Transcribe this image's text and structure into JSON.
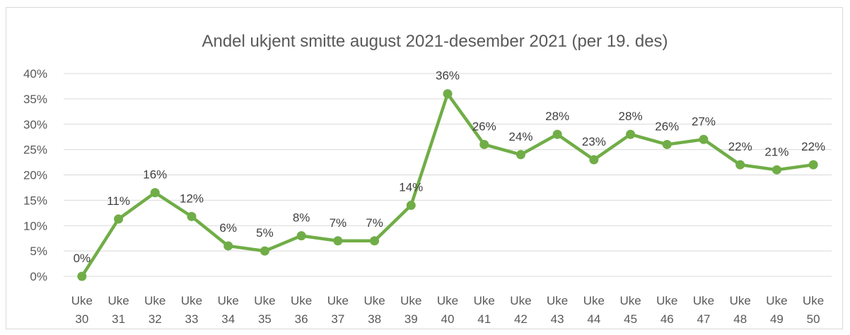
{
  "chart_data": {
    "type": "line",
    "title": "Andel ukjent smitte august 2021-desember 2021 (per 19. des)",
    "xlabel": "",
    "ylabel": "",
    "categories": [
      [
        "Uke",
        "30"
      ],
      [
        "Uke",
        "31"
      ],
      [
        "Uke",
        "32"
      ],
      [
        "Uke",
        "33"
      ],
      [
        "Uke",
        "34"
      ],
      [
        "Uke",
        "35"
      ],
      [
        "Uke",
        "36"
      ],
      [
        "Uke",
        "37"
      ],
      [
        "Uke",
        "38"
      ],
      [
        "Uke",
        "39"
      ],
      [
        "Uke",
        "40"
      ],
      [
        "Uke",
        "41"
      ],
      [
        "Uke",
        "42"
      ],
      [
        "Uke",
        "43"
      ],
      [
        "Uke",
        "44"
      ],
      [
        "Uke",
        "45"
      ],
      [
        "Uke",
        "46"
      ],
      [
        "Uke",
        "47"
      ],
      [
        "Uke",
        "48"
      ],
      [
        "Uke",
        "49"
      ],
      [
        "Uke",
        "50"
      ]
    ],
    "series": [
      {
        "values": [
          0,
          11.3,
          16.5,
          11.8,
          6,
          5,
          8,
          7,
          7,
          14,
          36,
          26,
          24,
          28,
          23,
          28,
          26,
          27,
          22,
          21,
          22
        ],
        "labels": [
          "0%",
          "11%",
          "16%",
          "12%",
          "6%",
          "5%",
          "8%",
          "7%",
          "7%",
          "14%",
          "36%",
          "26%",
          "24%",
          "28%",
          "23%",
          "28%",
          "26%",
          "27%",
          "22%",
          "21%",
          "22%"
        ],
        "color": "#70ad47"
      }
    ],
    "ylim": [
      0,
      40
    ],
    "yticks": [
      0,
      5,
      10,
      15,
      20,
      25,
      30,
      35,
      40
    ],
    "ytick_labels": [
      "0%",
      "5%",
      "10%",
      "15%",
      "20%",
      "25%",
      "30%",
      "35%",
      "40%"
    ],
    "grid": true,
    "legend": "none"
  }
}
